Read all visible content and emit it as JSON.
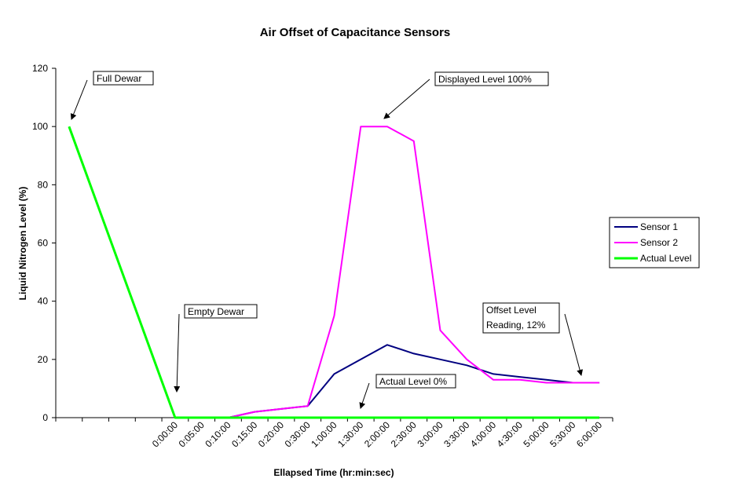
{
  "chart_data": {
    "type": "line",
    "title": "Air Offset of Capacitance Sensors",
    "xlabel": "Ellapsed Time (hr:min:sec)",
    "ylabel": "Liquid Nitrogen Level (%)",
    "ylim": [
      0,
      120
    ],
    "yticks": [
      0,
      20,
      40,
      60,
      80,
      100,
      120
    ],
    "grid": false,
    "legend_position": "right",
    "categories": [
      "",
      "",
      "",
      "",
      "0:00:00",
      "0:05:00",
      "0:10:00",
      "0:15:00",
      "0:20:00",
      "0:30:00",
      "1:00:00",
      "1:30:00",
      "2:00:00",
      "2:30:00",
      "3:00:00",
      "3:30:00",
      "4:00:00",
      "4:30:00",
      "5:00:00",
      "5:30:00",
      "6:00:00"
    ],
    "series": [
      {
        "name": "Sensor 1",
        "color": "#000080",
        "values": [
          null,
          null,
          null,
          null,
          0,
          0,
          0,
          2,
          3,
          4,
          15,
          20,
          25,
          22,
          20,
          18,
          15,
          14,
          13,
          12,
          12
        ]
      },
      {
        "name": "Sensor 2",
        "color": "#ff00ff",
        "values": [
          null,
          null,
          null,
          null,
          0,
          0,
          0,
          2,
          3,
          4,
          35,
          100,
          100,
          95,
          30,
          20,
          13,
          13,
          12,
          12,
          12
        ]
      },
      {
        "name": "Actual Level",
        "color": "#00ff00",
        "values": [
          100,
          null,
          null,
          null,
          0,
          0,
          0,
          0,
          0,
          0,
          0,
          0,
          0,
          0,
          0,
          0,
          0,
          0,
          0,
          0,
          0
        ]
      }
    ],
    "annotations": [
      {
        "lines": [
          "Full Dewar"
        ]
      },
      {
        "lines": [
          "Displayed Level 100%"
        ]
      },
      {
        "lines": [
          "Empty Dewar"
        ]
      },
      {
        "lines": [
          "Offset Level",
          "Reading, 12%"
        ]
      },
      {
        "lines": [
          "Actual Level 0%"
        ]
      }
    ]
  }
}
